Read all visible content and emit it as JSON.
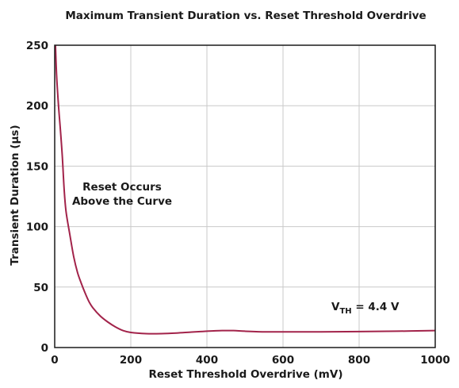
{
  "chart_data": {
    "type": "line",
    "title": "Maximum Transient Duration vs. Reset Threshold Overdrive",
    "xlabel": "Reset Threshold Overdrive (mV)",
    "ylabel": "Transient Duration (μs)",
    "xlim": [
      0,
      1000
    ],
    "ylim": [
      0,
      250
    ],
    "x_ticks": [
      "0",
      "200",
      "400",
      "600",
      "800",
      "1000"
    ],
    "y_ticks": [
      "0",
      "50",
      "100",
      "150",
      "200",
      "250"
    ],
    "x_tick_values": [
      0,
      200,
      400,
      600,
      800,
      1000
    ],
    "y_tick_values": [
      0,
      50,
      100,
      150,
      200,
      250
    ],
    "grid": true,
    "series": [
      {
        "color": "#a2234a",
        "x": [
          2,
          5,
          10,
          15,
          20,
          25,
          30,
          40,
          50,
          60,
          70,
          80,
          90,
          100,
          120,
          140,
          160,
          180,
          200,
          240,
          280,
          320,
          360,
          400,
          440,
          470,
          500,
          550,
          600,
          700,
          800,
          900,
          1000
        ],
        "y": [
          250,
          225,
          200,
          180,
          158,
          130,
          112,
          93,
          75,
          62,
          53,
          45,
          38,
          33,
          26,
          21,
          17,
          14,
          12.5,
          11.5,
          11.5,
          12,
          12.8,
          13.5,
          14,
          14,
          13.5,
          13,
          13,
          13,
          13.2,
          13.5,
          14
        ]
      }
    ],
    "annotations": {
      "reset_line1": "Reset Occurs",
      "reset_line2": "Above the Curve",
      "vth_main": "V",
      "vth_sub": "TH",
      "vth_value": " = 4.4 V"
    }
  }
}
